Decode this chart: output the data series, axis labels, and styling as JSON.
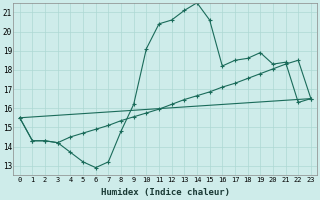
{
  "xlabel": "Humidex (Indice chaleur)",
  "background_color": "#ceecea",
  "grid_color": "#aed8d4",
  "line_color": "#1a6b5a",
  "xlim": [
    -0.5,
    23.5
  ],
  "ylim": [
    12.5,
    21.5
  ],
  "yticks": [
    13,
    14,
    15,
    16,
    17,
    18,
    19,
    20,
    21
  ],
  "xticks": [
    0,
    1,
    2,
    3,
    4,
    5,
    6,
    7,
    8,
    9,
    10,
    11,
    12,
    13,
    14,
    15,
    16,
    17,
    18,
    19,
    20,
    21,
    22,
    23
  ],
  "line1_x": [
    0,
    1,
    2,
    3,
    4,
    5,
    6,
    7,
    8,
    9,
    10,
    11,
    12,
    13,
    14,
    15,
    16,
    17,
    18,
    19,
    20,
    21,
    22,
    23
  ],
  "line1_y": [
    15.5,
    14.3,
    14.3,
    14.2,
    13.7,
    13.2,
    12.9,
    13.2,
    14.8,
    16.2,
    19.1,
    20.4,
    20.6,
    21.1,
    21.5,
    20.6,
    18.2,
    18.5,
    18.6,
    18.9,
    18.3,
    18.4,
    16.3,
    16.5
  ],
  "line2_x": [
    0,
    1,
    2,
    3,
    4,
    5,
    6,
    7,
    8,
    9,
    10,
    11,
    12,
    13,
    14,
    15,
    16,
    17,
    18,
    19,
    20,
    21,
    22,
    23
  ],
  "line2_y": [
    15.5,
    14.3,
    14.3,
    14.2,
    14.5,
    14.7,
    14.9,
    15.1,
    15.35,
    15.55,
    15.75,
    15.95,
    16.2,
    16.45,
    16.65,
    16.85,
    17.1,
    17.3,
    17.55,
    17.8,
    18.05,
    18.3,
    18.5,
    16.5
  ],
  "line3_x": [
    0,
    23
  ],
  "line3_y": [
    15.5,
    16.5
  ]
}
